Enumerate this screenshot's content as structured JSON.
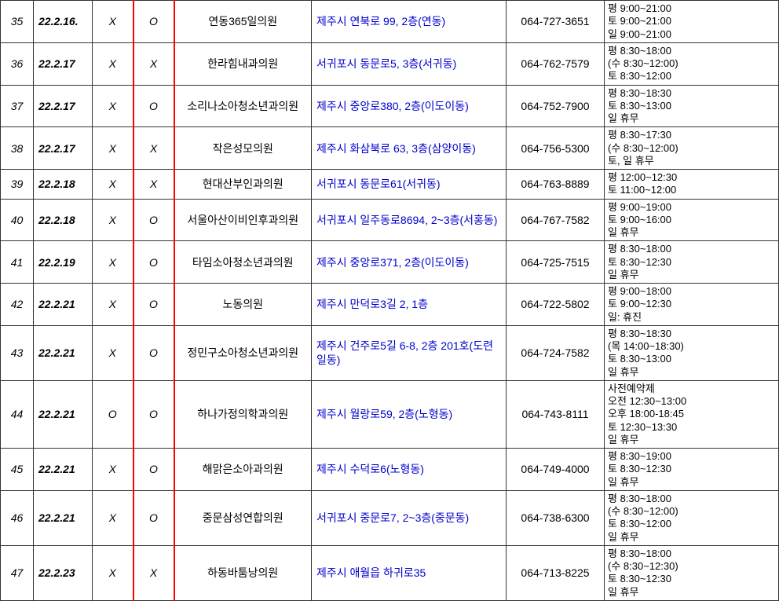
{
  "table": {
    "colors": {
      "border": "#333333",
      "redBorder": "#ff0000",
      "link": "#0000cc",
      "text": "#000000",
      "background": "#ffffff"
    },
    "rows": [
      {
        "num": "35",
        "date": "22.2.16.",
        "mark1": "X",
        "mark2": "O",
        "name": "연동365일의원",
        "addr": "제주시 연북로 99, 2층(연동)",
        "phone": "064-727-3651",
        "hours": "평 9:00~21:00\n토 9:00~21:00\n일 9:00~21:00"
      },
      {
        "num": "36",
        "date": "22.2.17",
        "mark1": "X",
        "mark2": "X",
        "name": "한라힘내과의원",
        "addr": "서귀포시 동문로5, 3층(서귀동)",
        "phone": "064-762-7579",
        "hours": "평 8:30~18:00\n (수 8:30~12:00)\n토 8:30~12:00"
      },
      {
        "num": "37",
        "date": "22.2.17",
        "mark1": "X",
        "mark2": "O",
        "name": "소리나소아청소년과의원",
        "addr": "제주시  중앙로380,  2층(이도이동)",
        "phone": "064-752-7900",
        "hours": "평 8:30~18:30\n토 8:30~13:00\n일 휴무"
      },
      {
        "num": "38",
        "date": "22.2.17",
        "mark1": "X",
        "mark2": "X",
        "name": "작은성모의원",
        "addr": "제주시 화삼북로 63, 3층(삼양이동)",
        "phone": "064-756-5300",
        "hours": "평 8:30~17:30\n (수 8:30~12:00)\n토, 일 휴무"
      },
      {
        "num": "39",
        "date": "22.2.18",
        "mark1": "X",
        "mark2": "X",
        "name": "현대산부인과의원",
        "addr": "서귀포시 동문로61(서귀동)",
        "phone": "064-763-8889",
        "hours": "평 12:00~12:30\n토 11:00~12:00"
      },
      {
        "num": "40",
        "date": "22.2.18",
        "mark1": "X",
        "mark2": "O",
        "name": "서울아산이비인후과의원",
        "addr": "서귀포시  일주동로8694, 2~3층(서홍동)",
        "phone": "064-767-7582",
        "hours": "평 9:00~19:00\n토 9:00~16:00\n일 휴무"
      },
      {
        "num": "41",
        "date": "22.2.19",
        "mark1": "X",
        "mark2": "O",
        "name": "타임소아청소년과의원",
        "addr": "제주시  중앙로371,  2층(이도이동)",
        "phone": "064-725-7515",
        "hours": "평 8:30~18:00\n토 8:30~12:30\n일 휴무"
      },
      {
        "num": "42",
        "date": "22.2.21",
        "mark1": "X",
        "mark2": "O",
        "name": "노동의원",
        "addr": "제주시 만덕로3길 2, 1층",
        "phone": "064-722-5802",
        "hours": "평 9:00~18:00\n토 9:00~12:30\n일: 휴진"
      },
      {
        "num": "43",
        "date": "22.2.21",
        "mark1": "X",
        "mark2": "O",
        "name": "정민구소아청소년과의원",
        "addr": "제주시  건주로5길 6-8, 2층 201호(도련일동)",
        "phone": "064-724-7582",
        "hours": "평 8:30~18:30\n (목 14:00~18:30)\n토 8:30~13:00\n일 휴무"
      },
      {
        "num": "44",
        "date": "22.2.21",
        "mark1": "O",
        "mark2": "O",
        "name": "하나가정의학과의원",
        "addr": "제주시 월랑로59, 2층(노형동)",
        "phone": "064-743-8111",
        "hours": "사전예약제\n오전 12:30~13:00\n오후 18:00-18:45\n토 12:30~13:30\n일 휴무"
      },
      {
        "num": "45",
        "date": "22.2.21",
        "mark1": "X",
        "mark2": "O",
        "name": "해맑은소아과의원",
        "addr": "제주시 수덕로6(노형동)",
        "phone": "064-749-4000",
        "hours": "평 8:30~19:00\n토 8:30~12:30\n일 휴무"
      },
      {
        "num": "46",
        "date": "22.2.21",
        "mark1": "X",
        "mark2": "O",
        "name": "중문삼성연합의원",
        "addr": "서귀포시  중문로7,  2~3층(중문동)",
        "phone": "064-738-6300",
        "hours": "평 8:30~18:00\n (수 8:30~12:00)\n토 8:30~12:00\n일 휴무"
      },
      {
        "num": "47",
        "date": "22.2.23",
        "mark1": "X",
        "mark2": "X",
        "name": "하동바툼낭의원",
        "addr": "제주시 애월읍 하귀로35",
        "phone": "064-713-8225",
        "hours": "평 8:30~18:00\n (수 8:30~12:30)\n토 8:30~12:30\n일 휴무"
      }
    ]
  }
}
